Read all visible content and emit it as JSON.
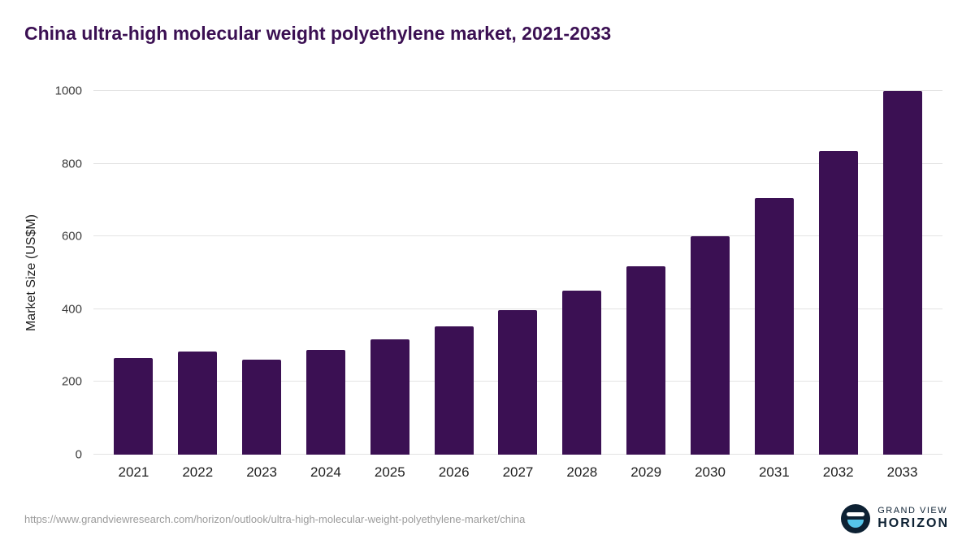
{
  "title": "China ultra-high molecular weight polyethylene market, 2021-2033",
  "chart_data": {
    "type": "bar",
    "categories": [
      "2021",
      "2022",
      "2023",
      "2024",
      "2025",
      "2026",
      "2027",
      "2028",
      "2029",
      "2030",
      "2031",
      "2032",
      "2033"
    ],
    "values": [
      265,
      283,
      262,
      288,
      317,
      352,
      398,
      452,
      518,
      600,
      705,
      835,
      1000
    ],
    "title": "China ultra-high molecular weight polyethylene market, 2021-2033",
    "xlabel": "",
    "ylabel": "Market Size (US$M)",
    "ylim": [
      0,
      1000
    ],
    "yticks": [
      0,
      200,
      400,
      600,
      800,
      1000
    ],
    "grid": true,
    "legend": false,
    "bar_color": "#3b1053"
  },
  "colors": {
    "title": "#3b1053",
    "bar": "#3b1053",
    "gridline": "#e3e3e3",
    "axis_text": "#3c3c3c",
    "url_text": "#9b9b9b",
    "logo_navy": "#0d2133",
    "logo_blue": "#56c5ea"
  },
  "footer": {
    "source_url": "https://www.grandviewresearch.com/horizon/outlook/ultra-high-molecular-weight-polyethylene-market/china",
    "logo_line1": "GRAND VIEW",
    "logo_line2": "HORIZON"
  }
}
